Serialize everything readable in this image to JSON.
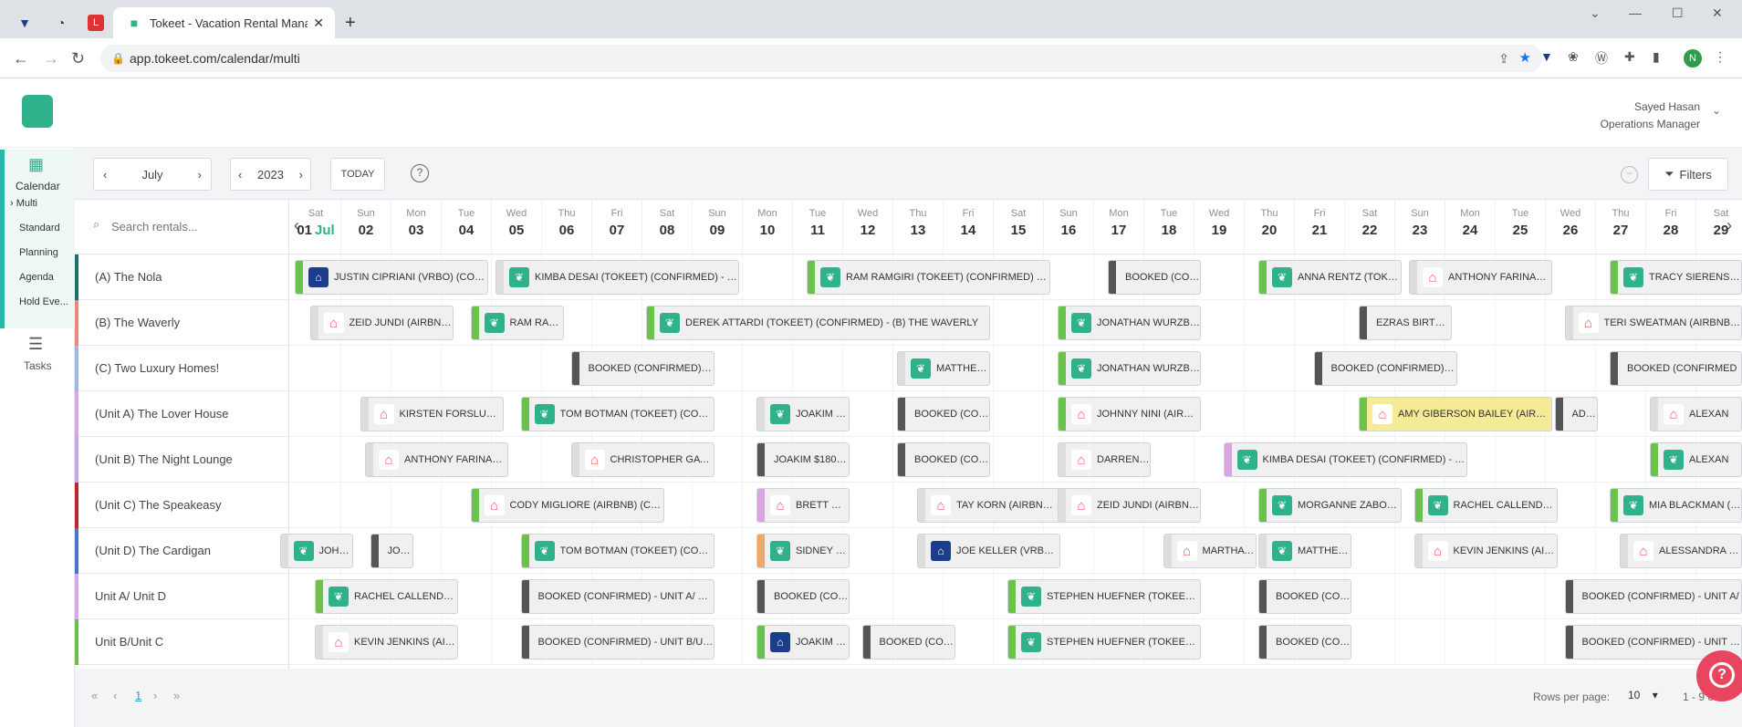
{
  "browser": {
    "tab_title": "Tokeet - Vacation Rental Manage",
    "url": "app.tokeet.com/calendar/multi",
    "profile_initial": "N"
  },
  "user": {
    "name": "Sayed Hasan",
    "role": "Operations Manager"
  },
  "sidebar": {
    "calendar": "Calendar",
    "items": [
      "Multi",
      "Standard",
      "Planning",
      "Agenda",
      "Hold Eve..."
    ],
    "tasks": "Tasks"
  },
  "toolbar": {
    "month": "July",
    "year": "2023",
    "today": "TODAY",
    "filters": "Filters"
  },
  "search": {
    "placeholder": "Search rentals..."
  },
  "days": [
    {
      "d": "Sat",
      "n": "01",
      "m": "Jul"
    },
    {
      "d": "Sun",
      "n": "02"
    },
    {
      "d": "Mon",
      "n": "03"
    },
    {
      "d": "Tue",
      "n": "04"
    },
    {
      "d": "Wed",
      "n": "05"
    },
    {
      "d": "Thu",
      "n": "06"
    },
    {
      "d": "Fri",
      "n": "07"
    },
    {
      "d": "Sat",
      "n": "08"
    },
    {
      "d": "Sun",
      "n": "09"
    },
    {
      "d": "Mon",
      "n": "10"
    },
    {
      "d": "Tue",
      "n": "11"
    },
    {
      "d": "Wed",
      "n": "12"
    },
    {
      "d": "Thu",
      "n": "13"
    },
    {
      "d": "Fri",
      "n": "14"
    },
    {
      "d": "Sat",
      "n": "15"
    },
    {
      "d": "Sun",
      "n": "16"
    },
    {
      "d": "Mon",
      "n": "17"
    },
    {
      "d": "Tue",
      "n": "18"
    },
    {
      "d": "Wed",
      "n": "19"
    },
    {
      "d": "Thu",
      "n": "20"
    },
    {
      "d": "Fri",
      "n": "21"
    },
    {
      "d": "Sat",
      "n": "22"
    },
    {
      "d": "Sun",
      "n": "23"
    },
    {
      "d": "Mon",
      "n": "24"
    },
    {
      "d": "Tue",
      "n": "25"
    },
    {
      "d": "Wed",
      "n": "26"
    },
    {
      "d": "Thu",
      "n": "27"
    },
    {
      "d": "Fri",
      "n": "28"
    },
    {
      "d": "Sat",
      "n": "29"
    }
  ],
  "rentals": [
    {
      "name": "(A) The Nola",
      "color": "#1c6e6e"
    },
    {
      "name": "(B) The Waverly",
      "color": "#e88a7a"
    },
    {
      "name": "(C) Two Luxury Homes!",
      "color": "#9db7e6"
    },
    {
      "name": "(Unit A) The Lover House",
      "color": "#d9a5e5"
    },
    {
      "name": "(Unit B) The Night Lounge",
      "color": "#c9a6e6"
    },
    {
      "name": "(Unit C) The Speakeasy",
      "color": "#c0262d"
    },
    {
      "name": "(Unit D) The Cardigan",
      "color": "#4a74c5"
    },
    {
      "name": "Unit A/ Unit D",
      "color": "#d9a5e5"
    },
    {
      "name": "Unit B/Unit C",
      "color": "#6ac24d"
    }
  ],
  "bookings": [
    [
      {
        "text": "JUSTIN CIPRIANI (VRBO) (CONFI...",
        "bar": "#6ac24d",
        "icon": "vrbo",
        "start": 0,
        "span": 4
      },
      {
        "text": "KIMBA DESAI (TOKEET) (CONFIRMED) - (UNI...",
        "bar": "#dddddd",
        "icon": "tok",
        "start": 4,
        "span": 5
      },
      {
        "text": "RAM RAMGIRI (TOKEET) (CONFIRMED) - (UN...",
        "bar": "#6ac24d",
        "icon": "tok",
        "start": 10.2,
        "span": 5
      },
      {
        "text": "BOOKED (CONFI...",
        "bar": "#555555",
        "icon": "",
        "start": 16.2,
        "span": 2
      },
      {
        "text": "ANNA RENTZ (TOKEE...",
        "bar": "#6ac24d",
        "icon": "tok",
        "start": 19.2,
        "span": 3
      },
      {
        "text": "ANTHONY FARINACCI...",
        "bar": "#dddddd",
        "icon": "air",
        "start": 22.2,
        "span": 3
      },
      {
        "text": "TRACY SIERENS (TC",
        "bar": "#6ac24d",
        "icon": "tok",
        "start": 26.2,
        "span": 3
      }
    ],
    [
      {
        "text": "ZEID JUNDI (AIRBNB) ...",
        "bar": "#dddddd",
        "icon": "air",
        "start": 0.3,
        "span": 3
      },
      {
        "text": "RAM RAM...",
        "bar": "#6ac24d",
        "icon": "tok",
        "start": 3.5,
        "span": 2
      },
      {
        "text": "DEREK ATTARDI (TOKEET) (CONFIRMED) - (B) THE WAVERLY",
        "bar": "#6ac24d",
        "icon": "tok",
        "start": 7,
        "span": 7
      },
      {
        "text": "JONATHAN WURZBA...",
        "bar": "#6ac24d",
        "icon": "tok",
        "start": 15.2,
        "span": 3
      },
      {
        "text": "EZRAS BIRTHDA...",
        "bar": "#555555",
        "icon": "",
        "start": 21.2,
        "span": 2
      },
      {
        "text": "TERI SWEATMAN (AIRBNB) (CO",
        "bar": "#dddddd",
        "icon": "air",
        "start": 25.3,
        "span": 4
      }
    ],
    [
      {
        "text": "BOOKED (CONFIRMED) - (C...",
        "bar": "#555555",
        "icon": "",
        "start": 5.5,
        "span": 3
      },
      {
        "text": "MATTHEW...",
        "bar": "#dddddd",
        "icon": "tok",
        "start": 12,
        "span": 2
      },
      {
        "text": "JONATHAN WURZBA...",
        "bar": "#6ac24d",
        "icon": "tok",
        "start": 15.2,
        "span": 3
      },
      {
        "text": "BOOKED (CONFIRMED) - (C...",
        "bar": "#555555",
        "icon": "",
        "start": 20.3,
        "span": 3
      },
      {
        "text": "BOOKED (CONFIRMED",
        "bar": "#555555",
        "icon": "",
        "start": 26.2,
        "span": 3
      }
    ],
    [
      {
        "text": "KIRSTEN FORSLUND (...",
        "bar": "#dddddd",
        "icon": "air",
        "start": 1.3,
        "span": 3
      },
      {
        "text": "TOM BOTMAN (TOKEET) (CONFI...",
        "bar": "#6ac24d",
        "icon": "tok",
        "start": 4.5,
        "span": 4
      },
      {
        "text": "JOAKIM S...",
        "bar": "#dddddd",
        "icon": "tok",
        "start": 9.2,
        "span": 2
      },
      {
        "text": "BOOKED (CONFI...",
        "bar": "#555555",
        "icon": "",
        "start": 12,
        "span": 2
      },
      {
        "text": "JOHNNY NINI (AIRBN...",
        "bar": "#6ac24d",
        "icon": "air",
        "start": 15.2,
        "span": 3
      },
      {
        "text": "AMY GIBERSON BAILEY (AIRBNB...",
        "bar": "#6ac24d",
        "icon": "air",
        "start": 21.2,
        "span": 4,
        "bg": "#f5eb96"
      },
      {
        "text": "ADV...",
        "bar": "#555555",
        "icon": "",
        "start": 25.1,
        "span": 1
      },
      {
        "text": "ALEXAN",
        "bar": "#dddddd",
        "icon": "air",
        "start": 27,
        "span": 2
      }
    ],
    [
      {
        "text": "ANTHONY FARINACCI...",
        "bar": "#dddddd",
        "icon": "air",
        "start": 1.4,
        "span": 3
      },
      {
        "text": "CHRISTOPHER GATEL...",
        "bar": "#dddddd",
        "icon": "air",
        "start": 5.5,
        "span": 3
      },
      {
        "text": "JOAKIM $1800 (...",
        "bar": "#555555",
        "icon": "",
        "start": 9.2,
        "span": 2
      },
      {
        "text": "BOOKED (CONFI...",
        "bar": "#555555",
        "icon": "",
        "start": 12,
        "span": 2
      },
      {
        "text": "DARREN H...",
        "bar": "#dddddd",
        "icon": "air",
        "start": 15.2,
        "span": 2
      },
      {
        "text": "KIMBA DESAI (TOKEET) (CONFIRMED) - (UNI...",
        "bar": "#d9a5e5",
        "icon": "tok",
        "start": 18.5,
        "span": 5
      },
      {
        "text": "ALEXAN",
        "bar": "#6ac24d",
        "icon": "tok",
        "start": 27,
        "span": 2
      }
    ],
    [
      {
        "text": "CODY MIGLIORE (AIRBNB) (CONF...",
        "bar": "#6ac24d",
        "icon": "air",
        "start": 3.5,
        "span": 4
      },
      {
        "text": "BRETT WH...",
        "bar": "#d9a5e5",
        "icon": "air",
        "start": 9.2,
        "span": 2
      },
      {
        "text": "TAY KORN (AIRBNB) (...",
        "bar": "#dddddd",
        "icon": "air",
        "start": 12.4,
        "span": 3
      },
      {
        "text": "ZEID JUNDI (AIRBNB) ...",
        "bar": "#dddddd",
        "icon": "air",
        "start": 15.2,
        "span": 3
      },
      {
        "text": "MORGANNE ZABOKR...",
        "bar": "#6ac24d",
        "icon": "tok",
        "start": 19.2,
        "span": 3
      },
      {
        "text": "RACHEL CALLENDER ...",
        "bar": "#6ac24d",
        "icon": "tok",
        "start": 22.3,
        "span": 3
      },
      {
        "text": "MIA BLACKMAN (TC",
        "bar": "#6ac24d",
        "icon": "tok",
        "start": 26.2,
        "span": 3
      }
    ],
    [
      {
        "text": "JOHNATH...",
        "bar": "#dddddd",
        "icon": "tok",
        "start": -0.3,
        "span": 1.6
      },
      {
        "text": "JON...",
        "bar": "#555555",
        "icon": "",
        "start": 1.5,
        "span": 1
      },
      {
        "text": "TOM BOTMAN (TOKEET) (CONFI...",
        "bar": "#6ac24d",
        "icon": "tok",
        "start": 4.5,
        "span": 4
      },
      {
        "text": "SIDNEY FI...",
        "bar": "#f0a868",
        "icon": "tok",
        "start": 9.2,
        "span": 2
      },
      {
        "text": "JOE KELLER (VRBO) (...",
        "bar": "#dddddd",
        "icon": "vrbo",
        "start": 12.4,
        "span": 3
      },
      {
        "text": "MARTHA B...",
        "bar": "#dddddd",
        "icon": "air",
        "start": 17.3,
        "span": 2
      },
      {
        "text": "MATTHEW...",
        "bar": "#dddddd",
        "icon": "tok",
        "start": 19.2,
        "span": 2
      },
      {
        "text": "KEVIN JENKINS (AIRB...",
        "bar": "#dddddd",
        "icon": "air",
        "start": 22.3,
        "span": 3
      },
      {
        "text": "ALESSANDRA LAIN",
        "bar": "#dddddd",
        "icon": "air",
        "start": 26.4,
        "span": 3
      }
    ],
    [
      {
        "text": "RACHEL CALLENDER ...",
        "bar": "#6ac24d",
        "icon": "tok",
        "start": 0.4,
        "span": 3
      },
      {
        "text": "BOOKED (CONFIRMED) - UNIT A/ UNIT D",
        "bar": "#555555",
        "icon": "",
        "start": 4.5,
        "span": 4
      },
      {
        "text": "BOOKED (CONFI...",
        "bar": "#555555",
        "icon": "",
        "start": 9.2,
        "span": 2
      },
      {
        "text": "STEPHEN HUEFNER (TOKEET) (C...",
        "bar": "#6ac24d",
        "icon": "tok",
        "start": 14.2,
        "span": 4
      },
      {
        "text": "BOOKED (CONFI...",
        "bar": "#555555",
        "icon": "",
        "start": 19.2,
        "span": 2
      },
      {
        "text": "BOOKED (CONFIRMED) - UNIT A/",
        "bar": "#555555",
        "icon": "",
        "start": 25.3,
        "span": 4
      }
    ],
    [
      {
        "text": "KEVIN JENKINS (AIRB...",
        "bar": "#dddddd",
        "icon": "air",
        "start": 0.4,
        "span": 3
      },
      {
        "text": "BOOKED (CONFIRMED) - UNIT B/UNIT C",
        "bar": "#555555",
        "icon": "",
        "start": 4.5,
        "span": 4
      },
      {
        "text": "JOAKIM S...",
        "bar": "#6ac24d",
        "icon": "vrbo",
        "start": 9.2,
        "span": 2
      },
      {
        "text": "BOOKED (CONFI...",
        "bar": "#555555",
        "icon": "",
        "start": 11.3,
        "span": 2
      },
      {
        "text": "STEPHEN HUEFNER (TOKEET) (C...",
        "bar": "#6ac24d",
        "icon": "tok",
        "start": 14.2,
        "span": 4
      },
      {
        "text": "BOOKED (CONFI...",
        "bar": "#555555",
        "icon": "",
        "start": 19.2,
        "span": 2
      },
      {
        "text": "BOOKED (CONFIRMED) - UNIT B/UN",
        "bar": "#555555",
        "icon": "",
        "start": 25.3,
        "span": 4
      }
    ]
  ],
  "footer": {
    "page": "1",
    "rows_label": "Rows per page:",
    "rows_value": "10",
    "range": "1 - 9 of 9"
  }
}
